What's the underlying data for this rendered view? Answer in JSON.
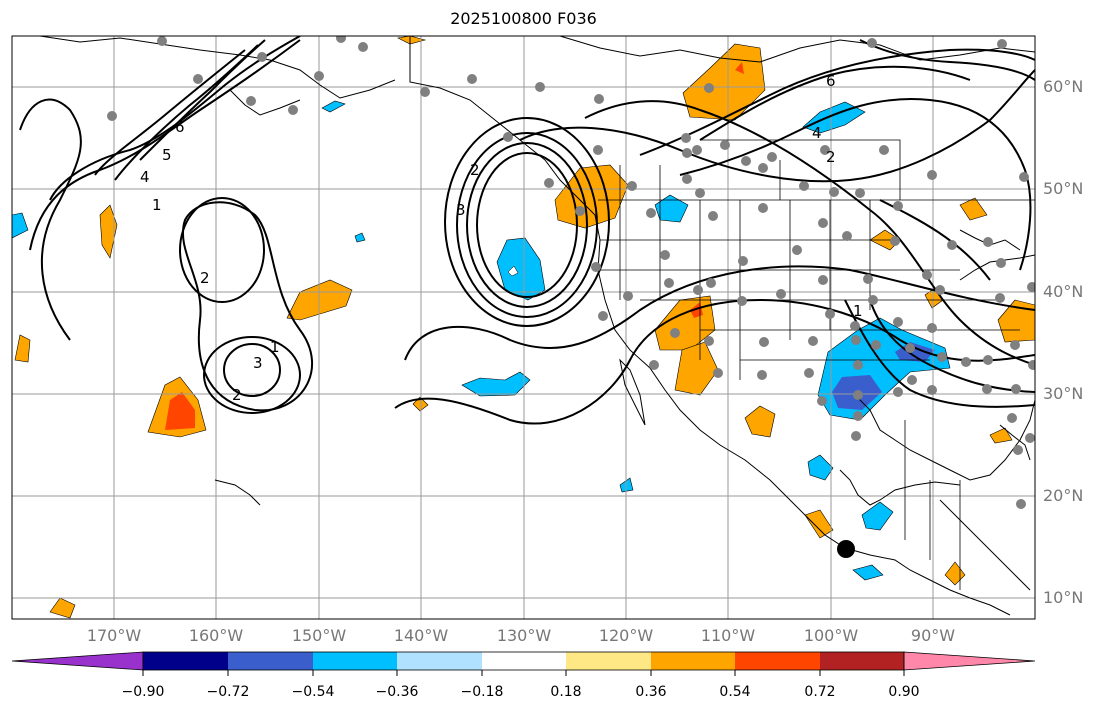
{
  "title": "2025100800 F036",
  "lat_labels": [
    "60°N",
    "50°N",
    "40°N",
    "30°N",
    "20°N",
    "10°N"
  ],
  "lon_labels": [
    "170°W",
    "160°W",
    "150°W",
    "140°W",
    "130°W",
    "120°W",
    "110°W",
    "100°W",
    "90°W"
  ],
  "contour_labels": [
    "6",
    "5",
    "4",
    "1",
    "2",
    "3",
    "2",
    "1",
    "2",
    "3",
    "4",
    "6",
    "2",
    "1"
  ],
  "colorbar": {
    "colors": [
      "#9932cc",
      "#00008b",
      "#3a5fcd",
      "#00bfff",
      "#b0e2ff",
      "#ffffff",
      "#fee886",
      "#ffa500",
      "#ff4500",
      "#b22222",
      "#ff88aa"
    ],
    "labels": [
      "−0.90",
      "−0.72",
      "−0.54",
      "−0.36",
      "−0.18",
      "0.18",
      "0.36",
      "0.54",
      "0.72",
      "0.90"
    ],
    "values": [
      -0.9,
      -0.72,
      -0.54,
      -0.36,
      -0.18,
      0.18,
      0.36,
      0.54,
      0.72,
      0.9
    ]
  }
}
